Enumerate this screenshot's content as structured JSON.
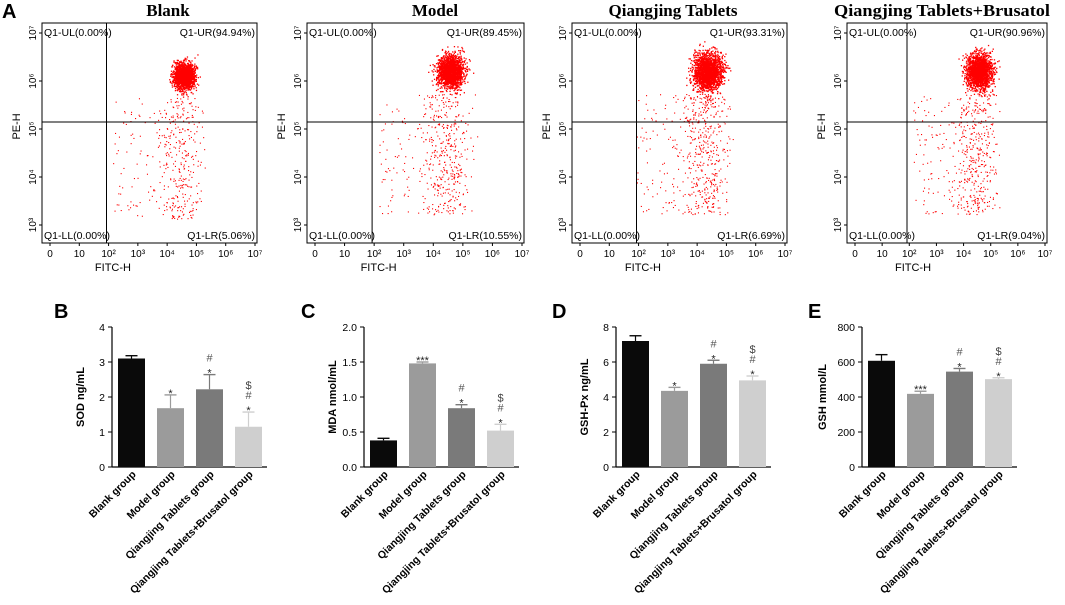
{
  "panel_letters": {
    "a": "A",
    "b": "B",
    "c": "C",
    "d": "D",
    "e": "E"
  },
  "flow_panels": [
    {
      "title": "Blank",
      "xlabel": "FITC-H",
      "ylabel": "PE-H",
      "xticks": [
        "0",
        "10",
        "10²",
        "10³",
        "10⁴",
        "10⁵",
        "10⁶",
        "10⁷"
      ],
      "yticks": [
        "10³",
        "10⁴",
        "10⁵",
        "10⁶",
        "10⁷"
      ],
      "ul": "Q1-UL(0.00%)",
      "ur": "Q1-UR(94.94%)",
      "ll": "Q1-LL(0.00%)",
      "lr": "Q1-LR(5.06%)"
    },
    {
      "title": "Model",
      "xlabel": "FITC-H",
      "ylabel": "PE-H",
      "xticks": [
        "0",
        "10",
        "10²",
        "10³",
        "10⁴",
        "10⁵",
        "10⁶",
        "10⁷"
      ],
      "yticks": [
        "10³",
        "10⁴",
        "10⁵",
        "10⁶",
        "10⁷"
      ],
      "ul": "Q1-UL(0.00%)",
      "ur": "Q1-UR(89.45%)",
      "ll": "Q1-LL(0.00%)",
      "lr": "Q1-LR(10.55%)"
    },
    {
      "title": "Qiangjing Tablets",
      "xlabel": "FITC-H",
      "ylabel": "PE-H",
      "xticks": [
        "0",
        "10",
        "10²",
        "10³",
        "10⁴",
        "10⁵",
        "10⁶",
        "10⁷"
      ],
      "yticks": [
        "10³",
        "10⁴",
        "10⁵",
        "10⁶",
        "10⁷"
      ],
      "ul": "Q1-UL(0.00%)",
      "ur": "Q1-UR(93.31%)",
      "ll": "Q1-LL(0.00%)",
      "lr": "Q1-LR(6.69%)"
    },
    {
      "title": "Qiangjing Tablets+Brusatol",
      "xlabel": "FITC-H",
      "ylabel": "PE-H",
      "xticks": [
        "0",
        "10",
        "10²",
        "10³",
        "10⁴",
        "10⁵",
        "10⁶",
        "10⁷"
      ],
      "yticks": [
        "10³",
        "10⁴",
        "10⁵",
        "10⁶",
        "10⁷"
      ],
      "ul": "Q1-UL(0.00%)",
      "ur": "Q1-UR(90.96%)",
      "ll": "Q1-LL(0.00%)",
      "lr": "Q1-LR(9.04%)"
    }
  ],
  "chart_data": [
    {
      "type": "bar",
      "panel": "B",
      "ylabel": "SOD ng/mL",
      "ylim": [
        0,
        4
      ],
      "yticks": [
        "0",
        "1",
        "2",
        "3",
        "4"
      ],
      "categories": [
        "Blank group",
        "Model group",
        "Qiangjing Tablets group",
        "Qiangjing Tablets+Brusatol group"
      ],
      "values": [
        3.1,
        1.68,
        2.22,
        1.15
      ],
      "errors": [
        0.08,
        0.38,
        0.42,
        0.42
      ],
      "annotations": [
        [],
        [
          "*"
        ],
        [
          "#",
          "*"
        ],
        [
          "$",
          "#",
          "*"
        ]
      ]
    },
    {
      "type": "bar",
      "panel": "C",
      "ylabel": "MDA nmol/mL",
      "ylim": [
        0,
        2.0
      ],
      "yticks": [
        "0.0",
        "0.5",
        "1.0",
        "1.5",
        "2.0"
      ],
      "categories": [
        "Blank group",
        "Model group",
        "Qiangjing Tablets group",
        "Qiangjing Tablets+Brusatol group"
      ],
      "values": [
        0.38,
        1.48,
        0.84,
        0.52
      ],
      "errors": [
        0.03,
        0.02,
        0.05,
        0.09
      ],
      "annotations": [
        [],
        [
          "***"
        ],
        [
          "#",
          "*"
        ],
        [
          "$",
          "#",
          "*"
        ]
      ]
    },
    {
      "type": "bar",
      "panel": "D",
      "ylabel": "GSH-Px ng/mL",
      "ylim": [
        0,
        8
      ],
      "yticks": [
        "0",
        "2",
        "4",
        "6",
        "8"
      ],
      "categories": [
        "Blank group",
        "Model group",
        "Qiangjing Tablets group",
        "Qiangjing Tablets+Brusatol group"
      ],
      "values": [
        7.2,
        4.35,
        5.9,
        4.95
      ],
      "errors": [
        0.3,
        0.2,
        0.2,
        0.25
      ],
      "annotations": [
        [],
        [
          "*"
        ],
        [
          "#",
          "*"
        ],
        [
          "$",
          "#",
          "*"
        ]
      ]
    },
    {
      "type": "bar",
      "panel": "E",
      "ylabel": "GSH mmol/L",
      "ylim": [
        0,
        800
      ],
      "yticks": [
        "0",
        "200",
        "400",
        "600",
        "800"
      ],
      "categories": [
        "Blank group",
        "Model group",
        "Qiangjing Tablets group",
        "Qiangjing Tablets+Brusatol group"
      ],
      "values": [
        607,
        418,
        545,
        502
      ],
      "errors": [
        35,
        15,
        18,
        8
      ],
      "annotations": [
        [],
        [
          "***"
        ],
        [
          "#",
          "*"
        ],
        [
          "$",
          "#",
          "*"
        ]
      ]
    }
  ],
  "colors": {
    "bars": [
      "#0a0a0a",
      "#9b9b9b",
      "#7a7a7a",
      "#cfcfcf"
    ],
    "dots": "#ff0000",
    "star": "#222222",
    "hash": "#555555",
    "dollar": "#444444"
  }
}
